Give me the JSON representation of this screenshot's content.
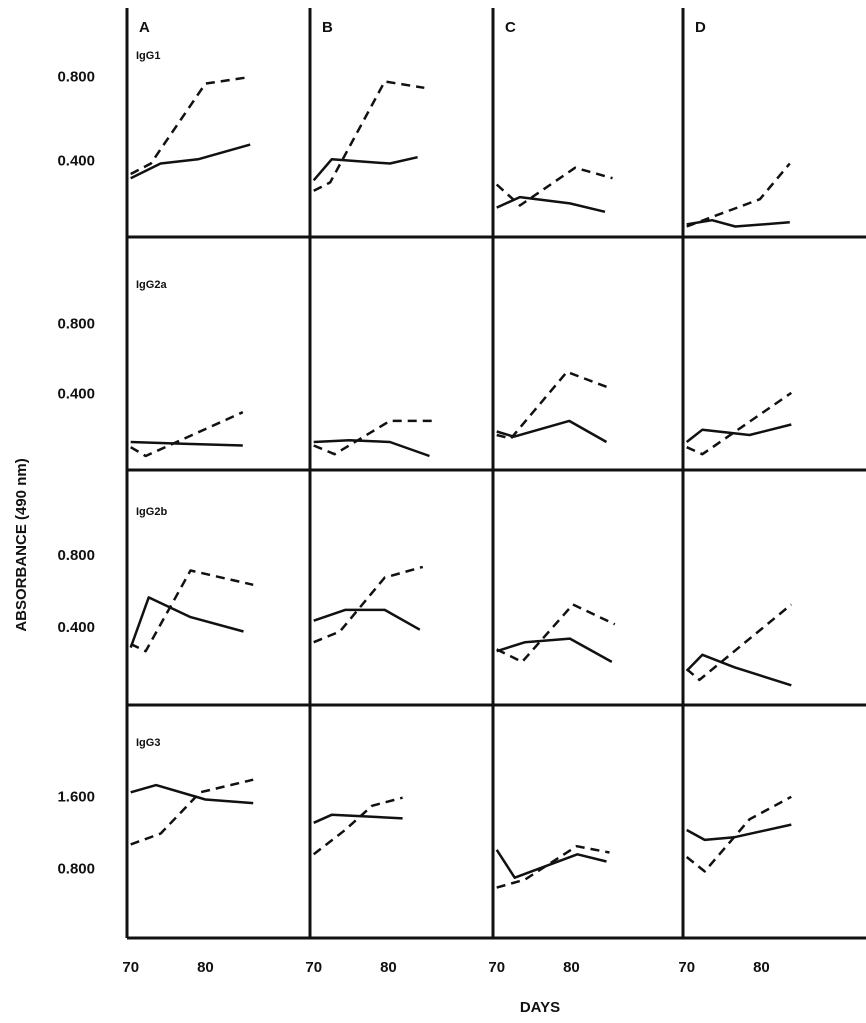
{
  "chart_data": {
    "type": "line",
    "xlabel": "DAYS",
    "ylabel": "ABSORBANCE (490 nm)",
    "xlim": [
      69.5,
      94
    ],
    "xticks": [
      70,
      80
    ],
    "columns": [
      "A",
      "B",
      "C",
      "D"
    ],
    "rows": [
      {
        "label": "IgG1",
        "ylim": [
          0.04,
          1.13
        ],
        "yticks": [
          {
            "value": 0.4,
            "label": "0.400"
          },
          {
            "value": 0.8,
            "label": "0.800"
          }
        ],
        "panels": [
          {
            "series": [
              {
                "style": "solid",
                "color": "#111111",
                "x": [
                  70,
                  74,
                  79,
                  86
                ],
                "values": [
                  0.32,
                  0.39,
                  0.41,
                  0.48
                ]
              },
              {
                "style": "dashed",
                "color": "#111111",
                "x": [
                  70,
                  72.7,
                  80,
                  85.7
                ],
                "values": [
                  0.34,
                  0.39,
                  0.77,
                  0.8
                ]
              }
            ]
          },
          {
            "series": [
              {
                "style": "solid",
                "color": "#111111",
                "x": [
                  70,
                  72.4,
                  76.2,
                  80.2,
                  83.9
                ],
                "values": [
                  0.31,
                  0.41,
                  0.4,
                  0.39,
                  0.42
                ]
              },
              {
                "style": "dashed",
                "color": "#111111",
                "x": [
                  70,
                  72.2,
                  79.5,
                  84.8
                ],
                "values": [
                  0.26,
                  0.3,
                  0.78,
                  0.75
                ]
              }
            ]
          },
          {
            "series": [
              {
                "style": "solid",
                "color": "#111111",
                "x": [
                  70,
                  73.1,
                  79.8,
                  84.5
                ],
                "values": [
                  0.18,
                  0.23,
                  0.2,
                  0.16
                ]
              },
              {
                "style": "dashed",
                "color": "#111111",
                "x": [
                  70,
                  73.1,
                  80.5,
                  85.5
                ],
                "values": [
                  0.29,
                  0.19,
                  0.37,
                  0.32
                ]
              }
            ]
          },
          {
            "series": [
              {
                "style": "solid",
                "color": "#111111",
                "x": [
                  70,
                  73.4,
                  76.5,
                  83.8
                ],
                "values": [
                  0.1,
                  0.12,
                  0.09,
                  0.11
                ]
              },
              {
                "style": "dashed",
                "color": "#111111",
                "x": [
                  70,
                  73,
                  79.8,
                  83.8
                ],
                "values": [
                  0.09,
                  0.13,
                  0.22,
                  0.39
                ]
              }
            ]
          }
        ]
      },
      {
        "label": "IgG2a",
        "ylim": [
          -0.03,
          1.3
        ],
        "yticks": [
          {
            "value": 0.4,
            "label": "0.400"
          },
          {
            "value": 0.8,
            "label": "0.800"
          }
        ],
        "panels": [
          {
            "series": [
              {
                "style": "solid",
                "color": "#111111",
                "x": [
                  70,
                  77,
                  85
                ],
                "values": [
                  0.13,
                  0.12,
                  0.11
                ]
              },
              {
                "style": "dashed",
                "color": "#111111",
                "x": [
                  70,
                  72,
                  85
                ],
                "values": [
                  0.1,
                  0.05,
                  0.3
                ]
              }
            ]
          },
          {
            "series": [
              {
                "style": "solid",
                "color": "#111111",
                "x": [
                  70,
                  74.8,
                  80.2,
                  85.5
                ],
                "values": [
                  0.13,
                  0.14,
                  0.13,
                  0.05
                ]
              },
              {
                "style": "dashed",
                "color": "#111111",
                "x": [
                  70,
                  72.8,
                  80.2,
                  85.9
                ],
                "values": [
                  0.11,
                  0.06,
                  0.25,
                  0.25
                ]
              }
            ]
          },
          {
            "series": [
              {
                "style": "solid",
                "color": "#111111",
                "x": [
                  70,
                  72.3,
                  79.7,
                  84.7
                ],
                "values": [
                  0.19,
                  0.16,
                  0.25,
                  0.13
                ]
              },
              {
                "style": "dashed",
                "color": "#111111",
                "x": [
                  70,
                  71.9,
                  79.4,
                  85
                ],
                "values": [
                  0.17,
                  0.15,
                  0.53,
                  0.44
                ]
              }
            ]
          },
          {
            "series": [
              {
                "style": "solid",
                "color": "#111111",
                "x": [
                  70,
                  72.1,
                  78.4,
                  84
                ],
                "values": [
                  0.13,
                  0.2,
                  0.17,
                  0.23
                ]
              },
              {
                "style": "dashed",
                "color": "#111111",
                "x": [
                  70,
                  72.1,
                  84
                ],
                "values": [
                  0.1,
                  0.06,
                  0.41
                ]
              }
            ]
          }
        ]
      },
      {
        "label": "IgG2b",
        "ylim": [
          -0.03,
          1.28
        ],
        "yticks": [
          {
            "value": 0.4,
            "label": "0.400"
          },
          {
            "value": 0.8,
            "label": "0.800"
          }
        ],
        "panels": [
          {
            "series": [
              {
                "style": "solid",
                "color": "#111111",
                "x": [
                  70,
                  72.4,
                  78,
                  85.1
                ],
                "values": [
                  0.29,
                  0.57,
                  0.46,
                  0.38
                ]
              },
              {
                "style": "dashed",
                "color": "#111111",
                "x": [
                  70,
                  72,
                  78,
                  86.4
                ],
                "values": [
                  0.31,
                  0.27,
                  0.72,
                  0.64
                ]
              }
            ]
          },
          {
            "series": [
              {
                "style": "solid",
                "color": "#111111",
                "x": [
                  70,
                  74.2,
                  79.5,
                  84.2
                ],
                "values": [
                  0.44,
                  0.5,
                  0.5,
                  0.39
                ]
              },
              {
                "style": "dashed",
                "color": "#111111",
                "x": [
                  70,
                  73.5,
                  79.5,
                  84.6
                ],
                "values": [
                  0.32,
                  0.38,
                  0.68,
                  0.74
                ]
              }
            ]
          },
          {
            "series": [
              {
                "style": "solid",
                "color": "#111111",
                "x": [
                  70,
                  73.8,
                  79.8,
                  85.4
                ],
                "values": [
                  0.27,
                  0.32,
                  0.34,
                  0.21
                ]
              },
              {
                "style": "dashed",
                "color": "#111111",
                "x": [
                  70,
                  73.4,
                  80.2,
                  85.8
                ],
                "values": [
                  0.28,
                  0.21,
                  0.53,
                  0.42
                ]
              }
            ]
          },
          {
            "series": [
              {
                "style": "solid",
                "color": "#111111",
                "x": [
                  70,
                  72.1,
                  76.4,
                  84
                ],
                "values": [
                  0.16,
                  0.25,
                  0.18,
                  0.08
                ]
              },
              {
                "style": "dashed",
                "color": "#111111",
                "x": [
                  70,
                  71.7,
                  84
                ],
                "values": [
                  0.17,
                  0.11,
                  0.53
                ]
              }
            ]
          }
        ]
      },
      {
        "label": "IgG3",
        "ylim": [
          0.04,
          2.63
        ],
        "yticks": [
          {
            "value": 0.8,
            "label": "0.800"
          },
          {
            "value": 1.6,
            "label": "1.600"
          }
        ],
        "panels": [
          {
            "series": [
              {
                "style": "solid",
                "color": "#111111",
                "x": [
                  70,
                  73.4,
                  80,
                  86.4
                ],
                "values": [
                  1.66,
                  1.74,
                  1.58,
                  1.54
                ]
              },
              {
                "style": "dashed",
                "color": "#111111",
                "x": [
                  70,
                  74,
                  79.3,
                  86.4
                ],
                "values": [
                  1.08,
                  1.2,
                  1.66,
                  1.8
                ]
              }
            ]
          },
          {
            "series": [
              {
                "style": "solid",
                "color": "#111111",
                "x": [
                  70,
                  72.4,
                  77.5,
                  81.9
                ],
                "values": [
                  1.32,
                  1.41,
                  1.39,
                  1.37
                ]
              },
              {
                "style": "dashed",
                "color": "#111111",
                "x": [
                  70,
                  74.2,
                  77.8,
                  81.9
                ],
                "values": [
                  0.97,
                  1.24,
                  1.51,
                  1.6
                ]
              }
            ]
          },
          {
            "series": [
              {
                "style": "solid",
                "color": "#111111",
                "x": [
                  70,
                  72.4,
                  80.8,
                  84.7
                ],
                "values": [
                  1.02,
                  0.71,
                  0.97,
                  0.89
                ]
              },
              {
                "style": "dashed",
                "color": "#111111",
                "x": [
                  70,
                  73.8,
                  80.7,
                  85.1
                ],
                "values": [
                  0.6,
                  0.69,
                  1.06,
                  0.99
                ]
              }
            ]
          },
          {
            "series": [
              {
                "style": "solid",
                "color": "#111111",
                "x": [
                  70,
                  72.4,
                  76.4,
                  84
                ],
                "values": [
                  1.24,
                  1.13,
                  1.16,
                  1.3
                ]
              },
              {
                "style": "dashed",
                "color": "#111111",
                "x": [
                  70,
                  72.4,
                  78.4,
                  84
                ],
                "values": [
                  0.94,
                  0.78,
                  1.36,
                  1.61
                ]
              }
            ]
          }
        ]
      }
    ]
  }
}
